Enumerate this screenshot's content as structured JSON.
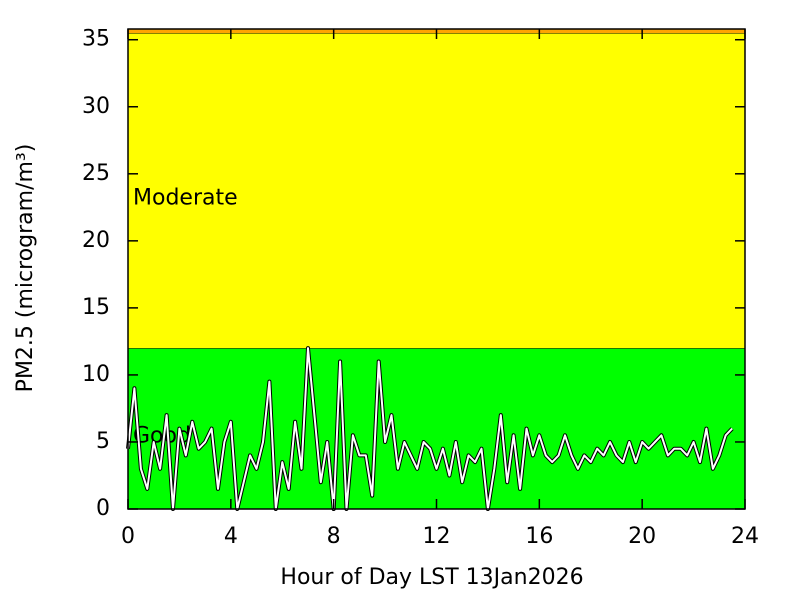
{
  "chart_data": {
    "type": "line",
    "xlabel": "Hour of Day LST 13Jan2026",
    "ylabel": "PM2.5 (microgram/m³)",
    "xlim": [
      0,
      24
    ],
    "xticks": [
      0,
      4,
      8,
      12,
      16,
      20,
      24
    ],
    "ylim": [
      0,
      35.8
    ],
    "yticks": [
      0,
      5,
      10,
      15,
      20,
      25,
      30,
      35
    ],
    "bands": [
      {
        "name": "Good",
        "from": 0,
        "to": 12,
        "color": "#00ff00"
      },
      {
        "name": "Moderate",
        "from": 12,
        "to": 35.5,
        "color": "#ffff00"
      },
      {
        "from": 35.5,
        "to": 35.8,
        "color": "#ffa500"
      }
    ],
    "series": [
      {
        "color": "#ffffff",
        "x": [
          0,
          0.25,
          0.5,
          0.75,
          1,
          1.25,
          1.5,
          1.75,
          2,
          2.25,
          2.5,
          2.75,
          3,
          3.25,
          3.5,
          3.75,
          4,
          4.25,
          4.5,
          4.75,
          5,
          5.25,
          5.5,
          5.75,
          6,
          6.25,
          6.5,
          6.75,
          7,
          7.25,
          7.5,
          7.75,
          8,
          8.25,
          8.5,
          8.75,
          9,
          9.25,
          9.5,
          9.75,
          10,
          10.25,
          10.5,
          10.75,
          11,
          11.25,
          11.5,
          11.75,
          12,
          12.25,
          12.5,
          12.75,
          13,
          13.25,
          13.5,
          13.75,
          14,
          14.25,
          14.5,
          14.75,
          15,
          15.25,
          15.5,
          15.75,
          16,
          16.25,
          16.5,
          16.75,
          17,
          17.25,
          17.5,
          17.75,
          18,
          18.25,
          18.5,
          18.75,
          19,
          19.25,
          19.5,
          19.75,
          20,
          20.25,
          20.5,
          20.75,
          21,
          21.25,
          21.5,
          21.75,
          22,
          22.25,
          22.5,
          22.75,
          23,
          23.25,
          23.5
        ],
        "values": [
          4.5,
          9,
          3,
          1.5,
          5,
          3,
          7,
          0,
          6,
          4,
          6.5,
          4.5,
          5,
          6,
          1.5,
          5,
          6.5,
          0,
          2,
          4,
          3,
          5,
          9.5,
          0,
          3.5,
          1.5,
          6.5,
          3,
          12,
          7,
          2,
          5,
          0,
          11,
          0,
          5.5,
          4,
          4,
          1,
          11,
          5,
          7,
          3,
          5,
          4,
          3,
          5,
          4.5,
          3,
          4.5,
          2.5,
          5,
          2,
          4,
          3.5,
          4.5,
          0,
          3,
          7,
          2,
          5.5,
          1.5,
          6,
          4,
          5.5,
          4,
          3.5,
          4,
          5.5,
          4,
          3,
          4,
          3.5,
          4.5,
          4,
          5,
          4,
          3.5,
          5,
          3.5,
          5,
          4.5,
          5,
          5.5,
          4,
          4.5,
          4.5,
          4,
          5,
          3.5,
          6,
          3,
          4,
          5.5,
          6
        ]
      }
    ]
  }
}
